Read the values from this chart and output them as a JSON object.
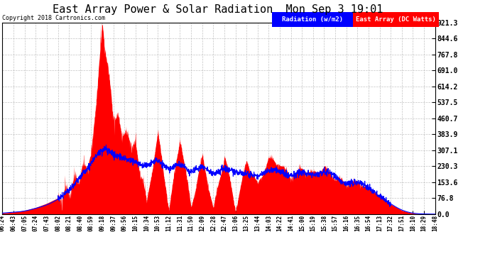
{
  "title": "East Array Power & Solar Radiation  Mon Sep 3 19:01",
  "copyright_text": "Copyright 2018 Cartronics.com",
  "legend_labels": [
    "Radiation (w/m2)",
    "East Array (DC Watts)"
  ],
  "yticks": [
    0.0,
    76.8,
    153.6,
    230.3,
    307.1,
    383.9,
    460.7,
    537.5,
    614.2,
    691.0,
    767.8,
    844.6,
    921.3
  ],
  "ymax": 921.3,
  "ymin": 0.0,
  "background_color": "#ffffff",
  "plot_background": "#ffffff",
  "grid_color": "#aaaaaa",
  "title_fontsize": 11,
  "radiation_color": "#0000ff",
  "power_color": "#ff0000",
  "xtick_labels": [
    "06:24",
    "06:43",
    "07:05",
    "07:24",
    "07:43",
    "08:02",
    "08:21",
    "08:40",
    "08:59",
    "09:18",
    "09:37",
    "09:56",
    "10:15",
    "10:34",
    "10:53",
    "11:12",
    "11:31",
    "11:50",
    "12:09",
    "12:28",
    "12:47",
    "13:06",
    "13:25",
    "13:44",
    "14:03",
    "14:22",
    "14:41",
    "15:00",
    "15:19",
    "15:38",
    "15:57",
    "16:16",
    "16:35",
    "16:54",
    "17:13",
    "17:32",
    "17:51",
    "18:10",
    "18:29",
    "18:48"
  ]
}
